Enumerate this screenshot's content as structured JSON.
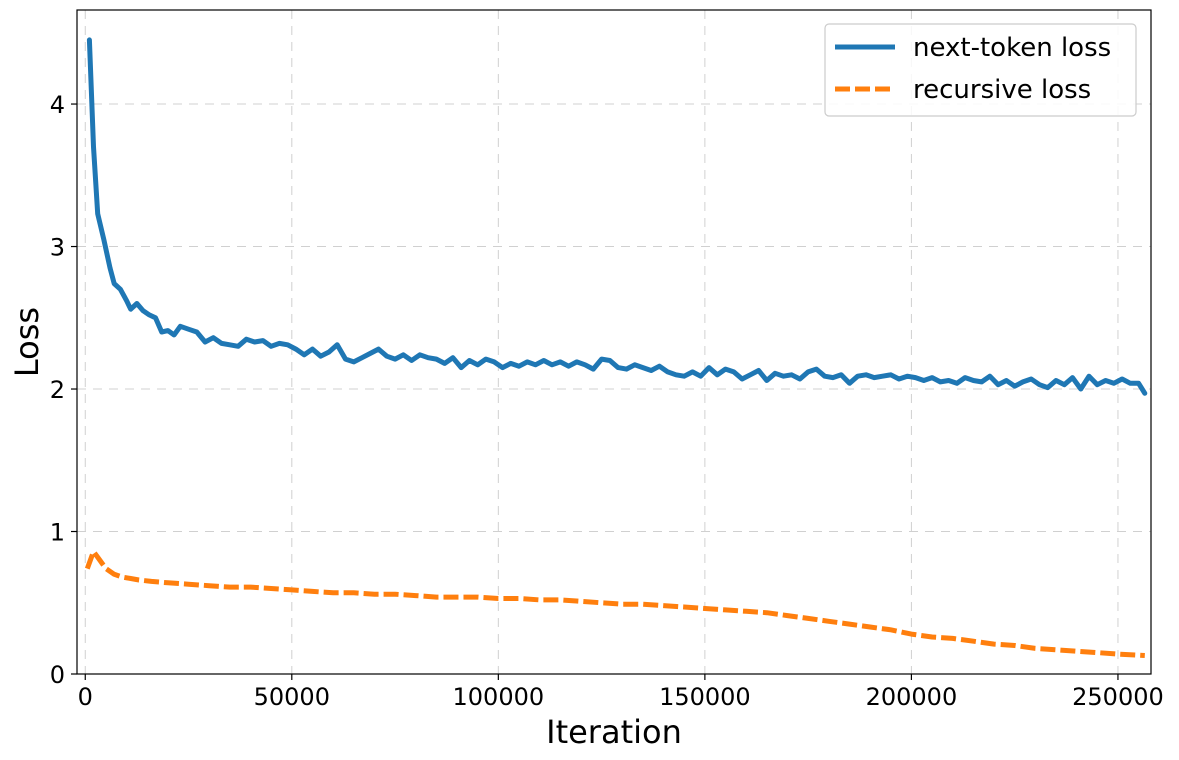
{
  "chart_data": {
    "type": "line",
    "title": "",
    "xlabel": "Iteration",
    "ylabel": "Loss",
    "xlim": [
      -2000,
      258000
    ],
    "ylim": [
      0,
      4.66
    ],
    "x_ticks": [
      0,
      50000,
      100000,
      150000,
      200000,
      250000
    ],
    "y_ticks": [
      0,
      1,
      2,
      3,
      4
    ],
    "grid": true,
    "legend_position": "top-right",
    "series": [
      {
        "name": "next-token loss",
        "color": "#1f77b4",
        "style": "solid",
        "points": [
          [
            1000,
            4.45
          ],
          [
            2000,
            3.7
          ],
          [
            3000,
            3.23
          ],
          [
            4500,
            3.05
          ],
          [
            6000,
            2.85
          ],
          [
            7000,
            2.74
          ],
          [
            8500,
            2.7
          ],
          [
            10000,
            2.62
          ],
          [
            11000,
            2.56
          ],
          [
            12500,
            2.6
          ],
          [
            14000,
            2.55
          ],
          [
            15500,
            2.52
          ],
          [
            17000,
            2.5
          ],
          [
            18500,
            2.4
          ],
          [
            20000,
            2.41
          ],
          [
            21500,
            2.38
          ],
          [
            23000,
            2.44
          ],
          [
            25000,
            2.42
          ],
          [
            27000,
            2.4
          ],
          [
            29000,
            2.33
          ],
          [
            31000,
            2.36
          ],
          [
            33000,
            2.32
          ],
          [
            35000,
            2.31
          ],
          [
            37000,
            2.3
          ],
          [
            39000,
            2.35
          ],
          [
            41000,
            2.33
          ],
          [
            43000,
            2.34
          ],
          [
            45000,
            2.3
          ],
          [
            47000,
            2.32
          ],
          [
            49000,
            2.31
          ],
          [
            51000,
            2.28
          ],
          [
            53000,
            2.24
          ],
          [
            55000,
            2.28
          ],
          [
            57000,
            2.23
          ],
          [
            59000,
            2.26
          ],
          [
            61000,
            2.31
          ],
          [
            63000,
            2.21
          ],
          [
            65000,
            2.19
          ],
          [
            67000,
            2.22
          ],
          [
            69000,
            2.25
          ],
          [
            71000,
            2.28
          ],
          [
            73000,
            2.23
          ],
          [
            75000,
            2.21
          ],
          [
            77000,
            2.24
          ],
          [
            79000,
            2.2
          ],
          [
            81000,
            2.24
          ],
          [
            83000,
            2.22
          ],
          [
            85000,
            2.21
          ],
          [
            87000,
            2.18
          ],
          [
            89000,
            2.22
          ],
          [
            91000,
            2.15
          ],
          [
            93000,
            2.2
          ],
          [
            95000,
            2.17
          ],
          [
            97000,
            2.21
          ],
          [
            99000,
            2.19
          ],
          [
            101000,
            2.15
          ],
          [
            103000,
            2.18
          ],
          [
            105000,
            2.16
          ],
          [
            107000,
            2.19
          ],
          [
            109000,
            2.17
          ],
          [
            111000,
            2.2
          ],
          [
            113000,
            2.17
          ],
          [
            115000,
            2.19
          ],
          [
            117000,
            2.16
          ],
          [
            119000,
            2.19
          ],
          [
            121000,
            2.17
          ],
          [
            123000,
            2.14
          ],
          [
            125000,
            2.21
          ],
          [
            127000,
            2.2
          ],
          [
            129000,
            2.15
          ],
          [
            131000,
            2.14
          ],
          [
            133000,
            2.17
          ],
          [
            135000,
            2.15
          ],
          [
            137000,
            2.13
          ],
          [
            139000,
            2.16
          ],
          [
            141000,
            2.12
          ],
          [
            143000,
            2.1
          ],
          [
            145000,
            2.09
          ],
          [
            147000,
            2.12
          ],
          [
            149000,
            2.09
          ],
          [
            151000,
            2.15
          ],
          [
            153000,
            2.1
          ],
          [
            155000,
            2.14
          ],
          [
            157000,
            2.12
          ],
          [
            159000,
            2.07
          ],
          [
            161000,
            2.1
          ],
          [
            163000,
            2.13
          ],
          [
            165000,
            2.06
          ],
          [
            167000,
            2.11
          ],
          [
            169000,
            2.09
          ],
          [
            171000,
            2.1
          ],
          [
            173000,
            2.07
          ],
          [
            175000,
            2.12
          ],
          [
            177000,
            2.14
          ],
          [
            179000,
            2.09
          ],
          [
            181000,
            2.08
          ],
          [
            183000,
            2.1
          ],
          [
            185000,
            2.04
          ],
          [
            187000,
            2.09
          ],
          [
            189000,
            2.1
          ],
          [
            191000,
            2.08
          ],
          [
            193000,
            2.09
          ],
          [
            195000,
            2.1
          ],
          [
            197000,
            2.07
          ],
          [
            199000,
            2.09
          ],
          [
            201000,
            2.08
          ],
          [
            203000,
            2.06
          ],
          [
            205000,
            2.08
          ],
          [
            207000,
            2.05
          ],
          [
            209000,
            2.06
          ],
          [
            211000,
            2.04
          ],
          [
            213000,
            2.08
          ],
          [
            215000,
            2.06
          ],
          [
            217000,
            2.05
          ],
          [
            219000,
            2.09
          ],
          [
            221000,
            2.03
          ],
          [
            223000,
            2.06
          ],
          [
            225000,
            2.02
          ],
          [
            227000,
            2.05
          ],
          [
            229000,
            2.07
          ],
          [
            231000,
            2.03
          ],
          [
            233000,
            2.01
          ],
          [
            235000,
            2.06
          ],
          [
            237000,
            2.03
          ],
          [
            239000,
            2.08
          ],
          [
            241000,
            2.0
          ],
          [
            243000,
            2.09
          ],
          [
            245000,
            2.03
          ],
          [
            247000,
            2.06
          ],
          [
            249000,
            2.04
          ],
          [
            251000,
            2.07
          ],
          [
            253000,
            2.04
          ],
          [
            255000,
            2.04
          ],
          [
            256500,
            1.97
          ]
        ]
      },
      {
        "name": "recursive loss",
        "color": "#ff7f0e",
        "style": "dashed",
        "points": [
          [
            500,
            0.74
          ],
          [
            2000,
            0.86
          ],
          [
            3500,
            0.8
          ],
          [
            5000,
            0.74
          ],
          [
            7000,
            0.7
          ],
          [
            9000,
            0.68
          ],
          [
            11000,
            0.67
          ],
          [
            13000,
            0.66
          ],
          [
            16000,
            0.65
          ],
          [
            20000,
            0.64
          ],
          [
            25000,
            0.63
          ],
          [
            30000,
            0.62
          ],
          [
            35000,
            0.61
          ],
          [
            40000,
            0.61
          ],
          [
            45000,
            0.6
          ],
          [
            50000,
            0.59
          ],
          [
            55000,
            0.58
          ],
          [
            60000,
            0.57
          ],
          [
            65000,
            0.57
          ],
          [
            70000,
            0.56
          ],
          [
            75000,
            0.56
          ],
          [
            80000,
            0.55
          ],
          [
            85000,
            0.54
          ],
          [
            90000,
            0.54
          ],
          [
            95000,
            0.54
          ],
          [
            100000,
            0.53
          ],
          [
            105000,
            0.53
          ],
          [
            110000,
            0.52
          ],
          [
            115000,
            0.52
          ],
          [
            120000,
            0.51
          ],
          [
            125000,
            0.5
          ],
          [
            130000,
            0.49
          ],
          [
            135000,
            0.49
          ],
          [
            140000,
            0.48
          ],
          [
            145000,
            0.47
          ],
          [
            150000,
            0.46
          ],
          [
            155000,
            0.45
          ],
          [
            160000,
            0.44
          ],
          [
            165000,
            0.43
          ],
          [
            170000,
            0.41
          ],
          [
            175000,
            0.39
          ],
          [
            180000,
            0.37
          ],
          [
            185000,
            0.35
          ],
          [
            190000,
            0.33
          ],
          [
            195000,
            0.31
          ],
          [
            200000,
            0.28
          ],
          [
            205000,
            0.26
          ],
          [
            210000,
            0.25
          ],
          [
            215000,
            0.23
          ],
          [
            220000,
            0.21
          ],
          [
            225000,
            0.2
          ],
          [
            230000,
            0.18
          ],
          [
            235000,
            0.17
          ],
          [
            240000,
            0.16
          ],
          [
            245000,
            0.15
          ],
          [
            250000,
            0.14
          ],
          [
            256500,
            0.13
          ]
        ]
      }
    ]
  }
}
